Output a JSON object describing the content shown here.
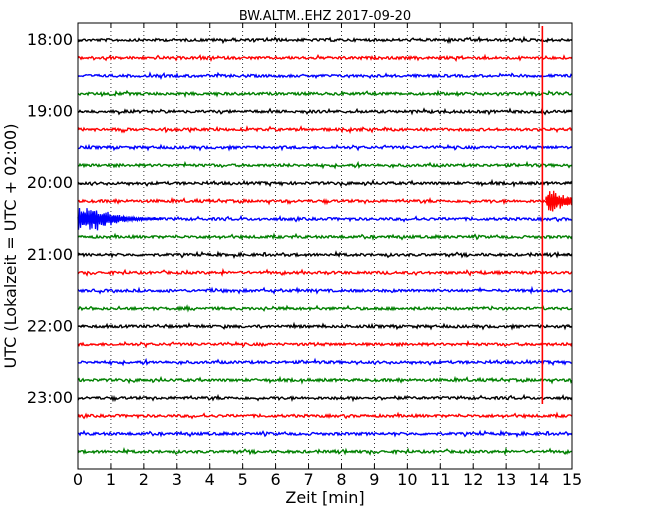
{
  "chart_data": {
    "type": "line",
    "title": "BW.ALTM..EHZ 2017-09-20",
    "xlabel": "Zeit  [min]",
    "ylabel": "UTC (Lokalzeit = UTC + 02:00)",
    "xlim": [
      0,
      15
    ],
    "x_ticks": [
      0,
      1,
      2,
      3,
      4,
      5,
      6,
      7,
      8,
      9,
      10,
      11,
      12,
      13,
      14,
      15
    ],
    "x_tick_labels": [
      "0",
      "1",
      "2",
      "3",
      "4",
      "5",
      "6",
      "7",
      "8",
      "9",
      "10",
      "11",
      "12",
      "13",
      "14",
      "15"
    ],
    "y_tick_labels": [
      "18:00",
      "19:00",
      "20:00",
      "21:00",
      "22:00",
      "23:00"
    ],
    "y_tick_traces": [
      0,
      4,
      8,
      12,
      16,
      20
    ],
    "trace_interval_min": 15,
    "grid": "vertical dotted",
    "traces": [
      {
        "start": "18:00",
        "color": "#000000"
      },
      {
        "start": "18:15",
        "color": "#ff0000"
      },
      {
        "start": "18:30",
        "color": "#0000ff"
      },
      {
        "start": "18:45",
        "color": "#008000"
      },
      {
        "start": "19:00",
        "color": "#000000"
      },
      {
        "start": "19:15",
        "color": "#ff0000"
      },
      {
        "start": "19:30",
        "color": "#0000ff"
      },
      {
        "start": "19:45",
        "color": "#008000"
      },
      {
        "start": "20:00",
        "color": "#000000"
      },
      {
        "start": "20:15",
        "color": "#ff0000"
      },
      {
        "start": "20:30",
        "color": "#0000ff"
      },
      {
        "start": "20:45",
        "color": "#008000"
      },
      {
        "start": "21:00",
        "color": "#000000"
      },
      {
        "start": "21:15",
        "color": "#ff0000"
      },
      {
        "start": "21:30",
        "color": "#0000ff"
      },
      {
        "start": "21:45",
        "color": "#008000"
      },
      {
        "start": "22:00",
        "color": "#000000"
      },
      {
        "start": "22:15",
        "color": "#ff0000"
      },
      {
        "start": "22:30",
        "color": "#0000ff"
      },
      {
        "start": "22:45",
        "color": "#008000"
      },
      {
        "start": "23:00",
        "color": "#000000"
      },
      {
        "start": "23:15",
        "color": "#ff0000"
      },
      {
        "start": "23:30",
        "color": "#0000ff"
      },
      {
        "start": "23:45",
        "color": "#008000"
      }
    ],
    "events": [
      {
        "trace": "20:15",
        "onset_min": 14.2,
        "end_min": 15.0,
        "color": "#ff0000",
        "description": "earthquake coda"
      },
      {
        "trace": "20:30",
        "onset_min": 0.0,
        "end_min": 2.6,
        "color": "#0000ff",
        "description": "coda continuation"
      }
    ],
    "spike": {
      "x_min": 14.1,
      "from_trace": "18:00",
      "to_trace": "23:00",
      "color": "#ff0000"
    }
  }
}
